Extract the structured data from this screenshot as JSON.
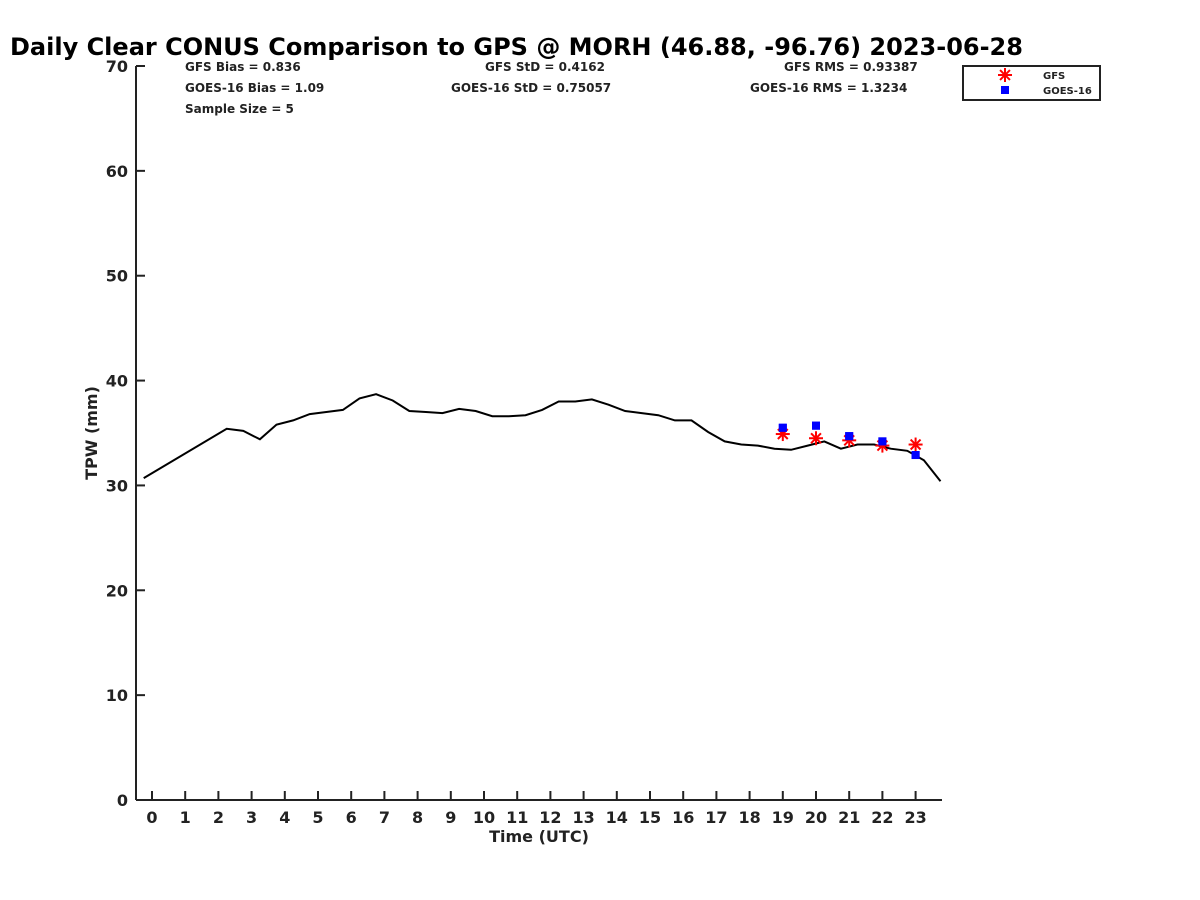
{
  "chart_data": {
    "type": "line",
    "title": "Daily Clear CONUS Comparison to GPS @ MORH (46.88, -96.76) 2023-06-28",
    "xlabel": "Time (UTC)",
    "ylabel": "TPW (mm)",
    "xlim": [
      -0.5,
      23.75
    ],
    "ylim": [
      0,
      70
    ],
    "xticks": [
      0,
      1,
      2,
      3,
      4,
      5,
      6,
      7,
      8,
      9,
      10,
      11,
      12,
      13,
      14,
      15,
      16,
      17,
      18,
      19,
      20,
      21,
      22,
      23
    ],
    "yticks": [
      0,
      10,
      20,
      30,
      40,
      50,
      60,
      70
    ],
    "stats": {
      "gfs_bias": "GFS Bias = 0.836",
      "goes_bias": "GOES-16 Bias = 1.09",
      "sample_size": "Sample Size = 5",
      "gfs_std": "GFS StD = 0.4162",
      "goes_std": "GOES-16 StD = 0.75057",
      "gfs_rms": "GFS RMS = 0.93387",
      "goes_rms": "GOES-16 RMS = 1.3234"
    },
    "legend": {
      "position": "top-right",
      "entries": [
        "GFS",
        "GOES-16"
      ]
    },
    "series": [
      {
        "name": "GPS",
        "style": "line",
        "color": "#000000",
        "x": [
          -0.25,
          2.25,
          2.75,
          3.25,
          3.75,
          4.25,
          4.75,
          5.25,
          5.75,
          6.25,
          6.75,
          7.25,
          7.75,
          8.25,
          8.75,
          9.25,
          9.75,
          10.25,
          10.75,
          11.25,
          11.75,
          12.25,
          12.75,
          13.25,
          13.75,
          14.25,
          14.75,
          15.25,
          15.75,
          16.25,
          16.75,
          17.25,
          17.75,
          18.25,
          18.75,
          19.25,
          19.75,
          20.25,
          20.75,
          21.25,
          21.75,
          22.25,
          22.75,
          23.25,
          23.75
        ],
        "values": [
          30.7,
          35.4,
          35.2,
          34.4,
          35.8,
          36.2,
          36.8,
          37.0,
          37.2,
          38.3,
          38.7,
          38.1,
          37.1,
          37.0,
          36.9,
          37.3,
          37.1,
          36.6,
          36.6,
          36.7,
          37.2,
          38.0,
          38.0,
          38.2,
          37.7,
          37.1,
          36.9,
          36.7,
          36.2,
          36.2,
          35.1,
          34.2,
          33.9,
          33.8,
          33.5,
          33.4,
          33.8,
          34.2,
          33.5,
          33.9,
          33.9,
          33.5,
          33.3,
          32.4,
          30.4
        ]
      },
      {
        "name": "GFS",
        "style": "asterisk",
        "color": "#ff0000",
        "x": [
          19,
          20,
          21,
          22,
          23
        ],
        "values": [
          34.9,
          34.5,
          34.3,
          33.8,
          33.9
        ]
      },
      {
        "name": "GOES-16",
        "style": "square",
        "color": "#0000ff",
        "x": [
          19,
          20,
          21,
          22,
          23
        ],
        "values": [
          35.5,
          35.7,
          34.7,
          34.2,
          32.9
        ]
      }
    ]
  }
}
